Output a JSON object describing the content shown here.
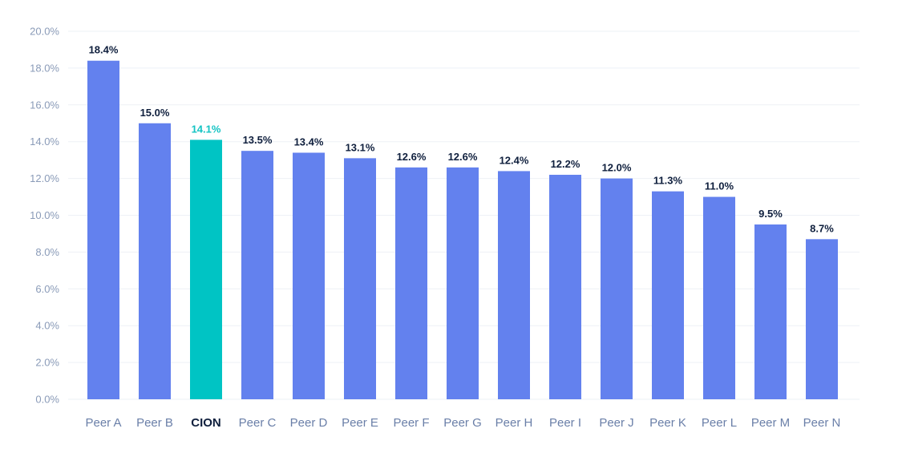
{
  "colors": {
    "bar": "#6381ee",
    "highlight_bar": "#00c4c4",
    "highlight_label": "#14c4c4",
    "data_label": "#0f1f3d",
    "tick_label": "#8a9bb8",
    "category_label": "#6a7fa8",
    "gridline": "#eef1f6"
  },
  "chart_data": {
    "type": "bar",
    "title": "",
    "xlabel": "",
    "ylabel": "",
    "ylim": [
      0,
      20
    ],
    "yticks": [
      "0.0%",
      "2.0%",
      "4.0%",
      "6.0%",
      "8.0%",
      "10.0%",
      "12.0%",
      "14.0%",
      "16.0%",
      "18.0%",
      "20.0%"
    ],
    "grid": true,
    "legend": "none",
    "highlight": "CION",
    "categories": [
      "Peer A",
      "Peer B",
      "CION",
      "Peer C",
      "Peer D",
      "Peer E",
      "Peer F",
      "Peer G",
      "Peer H",
      "Peer I",
      "Peer J",
      "Peer K",
      "Peer L",
      "Peer M",
      "Peer N"
    ],
    "values": [
      18.4,
      15.0,
      14.1,
      13.5,
      13.4,
      13.1,
      12.6,
      12.6,
      12.4,
      12.2,
      12.0,
      11.3,
      11.0,
      9.5,
      8.7
    ],
    "value_labels": [
      "18.4%",
      "15.0%",
      "14.1%",
      "13.5%",
      "13.4%",
      "13.1%",
      "12.6%",
      "12.6%",
      "12.4%",
      "12.2%",
      "12.0%",
      "11.3%",
      "11.0%",
      "9.5%",
      "8.7%"
    ]
  }
}
